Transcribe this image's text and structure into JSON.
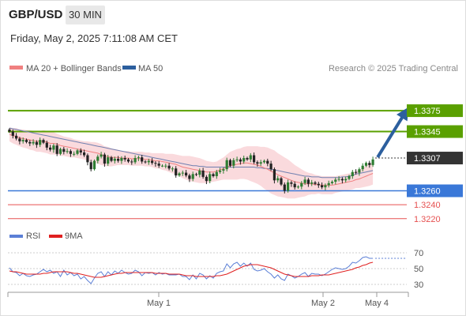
{
  "header": {
    "symbol": "GBP/USD",
    "timeframe_button": "30 MIN"
  },
  "timestamp": "Friday, May 2, 2025 7:11:08 AM CET",
  "legend": {
    "bollinger": "MA 20 + Bollinger Bands",
    "ma50": "MA 50",
    "credit": "Research © 2025 Trading Central"
  },
  "colors": {
    "resistance": "#5aa000",
    "support": "#3a78d8",
    "low_level": "#e65050",
    "current": "#333333",
    "arrow": "#2c5f9e",
    "candle_up": "#2e7d32",
    "candle_down": "#222222",
    "bollinger_fill": "#fadadd",
    "ma20": "#f08080",
    "ma50": "#7080b0",
    "rsi": "#5b7fd6",
    "rsi_ma": "#e02020"
  },
  "chart_data": [
    {
      "type": "candlestick",
      "title": "GBP/USD 30 MIN",
      "ylim": [
        1.3205,
        1.3425
      ],
      "x_tick_labels": [
        "May 1",
        "May 2",
        "May 4"
      ],
      "levels": [
        {
          "kind": "resistance",
          "value": 1.3375,
          "label": "1.3375"
        },
        {
          "kind": "resistance",
          "value": 1.3345,
          "label": "1.3345"
        },
        {
          "kind": "current",
          "value": 1.3307,
          "label": "1.3307"
        },
        {
          "kind": "support",
          "value": 1.326,
          "label": "1.3260"
        },
        {
          "kind": "low",
          "value": 1.324,
          "label": "1.3240"
        },
        {
          "kind": "low",
          "value": 1.322,
          "label": "1.3220"
        }
      ],
      "close": [
        1.3345,
        1.3339,
        1.3335,
        1.3331,
        1.3333,
        1.333,
        1.3328,
        1.333,
        1.3326,
        1.3333,
        1.3329,
        1.3322,
        1.3319,
        1.3325,
        1.3313,
        1.332,
        1.3316,
        1.3317,
        1.3313,
        1.3313,
        1.3318,
        1.3315,
        1.3311,
        1.3301,
        1.3291,
        1.3303,
        1.3309,
        1.3312,
        1.3299,
        1.3308,
        1.3303,
        1.3306,
        1.3303,
        1.3307,
        1.3305,
        1.3302,
        1.3301,
        1.3307,
        1.3308,
        1.3302,
        1.3301,
        1.3303,
        1.33,
        1.3299,
        1.3296,
        1.3296,
        1.3296,
        1.3292,
        1.3292,
        1.3282,
        1.3285,
        1.3286,
        1.3282,
        1.3277,
        1.3284,
        1.3283,
        1.3289,
        1.328,
        1.3274,
        1.3284,
        1.3281,
        1.3287,
        1.3289,
        1.3291,
        1.3304,
        1.3296,
        1.3304,
        1.3305,
        1.3302,
        1.3307,
        1.3305,
        1.3311,
        1.3301,
        1.3299,
        1.3301,
        1.3303,
        1.3299,
        1.3291,
        1.3275,
        1.3278,
        1.3269,
        1.326,
        1.3272,
        1.327,
        1.3265,
        1.3266,
        1.3271,
        1.3276,
        1.327,
        1.3272,
        1.327,
        1.3268,
        1.3265,
        1.3268,
        1.3271,
        1.3273,
        1.3276,
        1.3277,
        1.3275,
        1.3277,
        1.3281,
        1.3287,
        1.3286,
        1.3291,
        1.3296,
        1.33,
        1.3297,
        1.3305
      ],
      "ma20": [
        1.3341,
        1.3339,
        1.3338,
        1.3336,
        1.3335,
        1.3334,
        1.3333,
        1.3332,
        1.3331,
        1.3331,
        1.3331,
        1.333,
        1.3328,
        1.3328,
        1.3327,
        1.3325,
        1.3324,
        1.3323,
        1.3322,
        1.3321,
        1.332,
        1.3319,
        1.3318,
        1.3317,
        1.3316,
        1.3315,
        1.3314,
        1.3312,
        1.331,
        1.3309,
        1.3308,
        1.3308,
        1.3308,
        1.3307,
        1.3307,
        1.3307,
        1.3306,
        1.3306,
        1.3306,
        1.3306,
        1.3305,
        1.3305,
        1.3304,
        1.3303,
        1.3303,
        1.3302,
        1.3301,
        1.33,
        1.3299,
        1.3298,
        1.3296,
        1.3294,
        1.3293,
        1.3292,
        1.3291,
        1.329,
        1.3289,
        1.3288,
        1.3287,
        1.3287,
        1.3287,
        1.3288,
        1.329,
        1.3292,
        1.3294,
        1.3296,
        1.3297,
        1.3298,
        1.3299,
        1.33,
        1.33,
        1.3299,
        1.3298,
        1.3297,
        1.3295,
        1.3293,
        1.3291,
        1.3288,
        1.3286,
        1.3283,
        1.3281,
        1.3279,
        1.3277,
        1.3275,
        1.3273,
        1.3272,
        1.3271,
        1.327,
        1.327,
        1.327,
        1.3269,
        1.3269,
        1.3268,
        1.3268,
        1.3268,
        1.3268,
        1.3269,
        1.327,
        1.3271,
        1.3272,
        1.3273,
        1.3274,
        1.3276,
        1.3277,
        1.3279,
        1.3281,
        1.3283,
        1.3285
      ],
      "ma50": [
        1.335,
        1.3349,
        1.3348,
        1.3347,
        1.3346,
        1.3345,
        1.3344,
        1.3343,
        1.3342,
        1.3341,
        1.334,
        1.3339,
        1.3338,
        1.3337,
        1.3336,
        1.3335,
        1.3334,
        1.3333,
        1.3332,
        1.3331,
        1.333,
        1.3329,
        1.3328,
        1.3327,
        1.3326,
        1.3325,
        1.3324,
        1.3323,
        1.3322,
        1.3321,
        1.332,
        1.3319,
        1.3318,
        1.3317,
        1.3316,
        1.3315,
        1.3314,
        1.3313,
        1.3312,
        1.3311,
        1.331,
        1.3309,
        1.3308,
        1.3307,
        1.3306,
        1.3305,
        1.3304,
        1.3303,
        1.3302,
        1.3301,
        1.33,
        1.3299,
        1.3298,
        1.3297,
        1.3296,
        1.3296,
        1.3295,
        1.3295,
        1.3294,
        1.3294,
        1.3294,
        1.3294,
        1.3294,
        1.3294,
        1.3294,
        1.3294,
        1.3294,
        1.3294,
        1.3294,
        1.3294,
        1.3294,
        1.3294,
        1.3294,
        1.3293,
        1.3293,
        1.3292,
        1.3292,
        1.3291,
        1.329,
        1.3289,
        1.3288,
        1.3287,
        1.3286,
        1.3285,
        1.3284,
        1.3283,
        1.3282,
        1.3281,
        1.3281,
        1.328,
        1.328,
        1.328,
        1.3279,
        1.3279,
        1.3279,
        1.3279,
        1.3279,
        1.3279,
        1.328,
        1.328,
        1.3281,
        1.3282,
        1.3284,
        1.3285,
        1.3286,
        1.3287,
        1.3288,
        1.3289
      ],
      "bollinger_width": [
        0.001,
        0.0011,
        0.0012,
        0.0012,
        0.0013,
        0.0013,
        0.0014,
        0.0014,
        0.0015,
        0.0015,
        0.0016,
        0.0016,
        0.0016,
        0.0016,
        0.0015,
        0.0015,
        0.0014,
        0.0014,
        0.0014,
        0.0013,
        0.0013,
        0.0013,
        0.0013,
        0.0014,
        0.0014,
        0.0015,
        0.0015,
        0.0015,
        0.0014,
        0.0014,
        0.0013,
        0.0012,
        0.0011,
        0.001,
        0.001,
        0.001,
        0.001,
        0.001,
        0.001,
        0.001,
        0.001,
        0.001,
        0.001,
        0.0011,
        0.0011,
        0.0012,
        0.0012,
        0.0013,
        0.0014,
        0.0014,
        0.0015,
        0.0016,
        0.0017,
        0.0018,
        0.0018,
        0.0018,
        0.0018,
        0.0017,
        0.0016,
        0.0015,
        0.0014,
        0.0014,
        0.0015,
        0.0016,
        0.0018,
        0.002,
        0.0021,
        0.0022,
        0.0022,
        0.0023,
        0.0024,
        0.0025,
        0.0026,
        0.0027,
        0.0028,
        0.003,
        0.0031,
        0.0032,
        0.0032,
        0.0031,
        0.003,
        0.0029,
        0.0028,
        0.0026,
        0.0024,
        0.0022,
        0.002,
        0.0018,
        0.0016,
        0.0015,
        0.0014,
        0.0013,
        0.0013,
        0.0013,
        0.0013,
        0.0013,
        0.0012,
        0.0012,
        0.0012,
        0.0012,
        0.0012,
        0.0012,
        0.0012,
        0.0013,
        0.0014,
        0.0015,
        0.0016,
        0.0016
      ],
      "projection": {
        "from": 1.3307,
        "to": 1.3375,
        "direction": "up"
      }
    },
    {
      "type": "line",
      "title": "RSI",
      "legend": [
        "RSI",
        "9MA"
      ],
      "ylim": [
        20,
        80
      ],
      "y_ticks": [
        "70",
        "50",
        "30"
      ],
      "series": [
        {
          "name": "RSI",
          "values": [
            51,
            46,
            45,
            41,
            44,
            41,
            40,
            42,
            43,
            46,
            49,
            46,
            48,
            44,
            46,
            40,
            48,
            42,
            45,
            41,
            43,
            37,
            40,
            35,
            31,
            38,
            44,
            46,
            40,
            46,
            42,
            47,
            44,
            48,
            45,
            43,
            44,
            48,
            46,
            41,
            45,
            44,
            45,
            42,
            45,
            43,
            44,
            42,
            42,
            42,
            43,
            40,
            40,
            36,
            42,
            37,
            44,
            42,
            37,
            41,
            38,
            44,
            46,
            47,
            56,
            51,
            56,
            58,
            53,
            57,
            53,
            57,
            49,
            47,
            48,
            50,
            46,
            43,
            38,
            42,
            37,
            35,
            43,
            41,
            38,
            40,
            43,
            45,
            40,
            44,
            43,
            43,
            41,
            43,
            46,
            49,
            51,
            50,
            49,
            50,
            53,
            58,
            57,
            60,
            64,
            65,
            63,
            63
          ]
        },
        {
          "name": "9MA",
          "values": [
            47,
            46,
            46,
            45,
            44,
            43,
            43,
            43,
            43,
            43,
            44,
            44,
            45,
            46,
            46,
            46,
            46,
            46,
            45,
            44,
            44,
            43,
            42,
            41,
            40,
            39,
            39,
            39,
            40,
            41,
            42,
            43,
            44,
            44,
            45,
            45,
            45,
            45,
            45,
            45,
            45,
            45,
            45,
            44,
            44,
            44,
            44,
            43,
            43,
            43,
            43,
            42,
            41,
            41,
            41,
            40,
            40,
            40,
            40,
            40,
            40,
            41,
            41,
            42,
            43,
            45,
            47,
            49,
            51,
            53,
            54,
            55,
            55,
            55,
            54,
            53,
            52,
            51,
            49,
            47,
            45,
            43,
            42,
            41,
            40,
            40,
            40,
            40,
            40,
            41,
            41,
            41,
            42,
            42,
            42,
            43,
            44,
            45,
            46,
            47,
            48,
            49,
            51,
            52,
            54,
            55,
            57,
            58
          ]
        }
      ]
    }
  ]
}
